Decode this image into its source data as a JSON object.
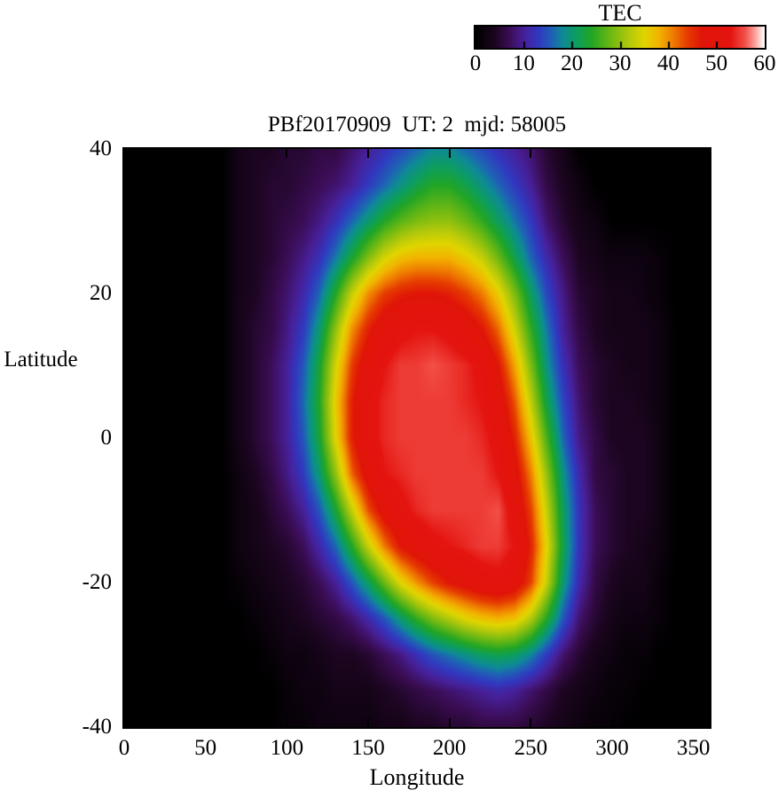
{
  "axes": {
    "xticks": [
      0,
      50,
      100,
      150,
      200,
      250,
      300,
      350
    ],
    "yticks": [
      -40,
      -20,
      0,
      20,
      40
    ],
    "xlim": [
      0,
      360
    ],
    "ylim": [
      -40,
      40
    ]
  },
  "colorbar": {
    "title": "TEC",
    "ticks": [
      0,
      10,
      20,
      30,
      40,
      50,
      60
    ],
    "min": 0,
    "max": 60
  },
  "chart_data": {
    "type": "heatmap",
    "title": "PBf20170909  UT: 2  mjd: 58005",
    "xlabel": "Longitude",
    "ylabel": "Latitude",
    "zlabel": "TEC",
    "xlim": [
      0,
      360
    ],
    "ylim": [
      -40,
      40
    ],
    "zlim": [
      0,
      60
    ],
    "grid": false,
    "lons": [
      0,
      10,
      20,
      30,
      40,
      50,
      60,
      70,
      80,
      90,
      100,
      110,
      120,
      130,
      140,
      150,
      160,
      170,
      180,
      190,
      200,
      210,
      220,
      230,
      240,
      250,
      260,
      270,
      280,
      290,
      300,
      310,
      320,
      330,
      340,
      350
    ],
    "lats": [
      40,
      35,
      30,
      25,
      20,
      15,
      10,
      5,
      0,
      -5,
      -10,
      -15,
      -20,
      -25,
      -30,
      -35,
      -40
    ],
    "values": [
      [
        0,
        0,
        0,
        0,
        0,
        0,
        0,
        3,
        4,
        4,
        5,
        5,
        6,
        6,
        8,
        10,
        12,
        14,
        16,
        18,
        18,
        16,
        14,
        12,
        10,
        8,
        5,
        3,
        0,
        0,
        0,
        0,
        0,
        0,
        0,
        0
      ],
      [
        0,
        0,
        0,
        0,
        0,
        0,
        0,
        3,
        4,
        5,
        5,
        6,
        7,
        8,
        10,
        13,
        16,
        19,
        22,
        24,
        24,
        22,
        19,
        16,
        13,
        10,
        6,
        4,
        2,
        0,
        0,
        0,
        0,
        0,
        0,
        0
      ],
      [
        0,
        0,
        0,
        0,
        0,
        0,
        0,
        3,
        4,
        5,
        6,
        7,
        9,
        12,
        16,
        20,
        24,
        27,
        29,
        30,
        30,
        28,
        25,
        21,
        17,
        13,
        8,
        5,
        3,
        2,
        0,
        0,
        0,
        0,
        0,
        0
      ],
      [
        0,
        0,
        0,
        0,
        0,
        0,
        0,
        3,
        4,
        5,
        7,
        9,
        12,
        17,
        23,
        29,
        34,
        37,
        38,
        38,
        38,
        36,
        33,
        28,
        22,
        16,
        11,
        7,
        4,
        3,
        2,
        2,
        2,
        1,
        0,
        0
      ],
      [
        0,
        0,
        0,
        0,
        0,
        0,
        0,
        3,
        4,
        6,
        8,
        11,
        16,
        24,
        33,
        40,
        44,
        46,
        47,
        47,
        46,
        44,
        41,
        36,
        29,
        21,
        14,
        9,
        5,
        4,
        3,
        3,
        2,
        1,
        0,
        0
      ],
      [
        0,
        0,
        0,
        0,
        0,
        0,
        0,
        3,
        5,
        6,
        9,
        13,
        20,
        30,
        40,
        46,
        50,
        52,
        53,
        53,
        52,
        50,
        47,
        42,
        34,
        25,
        17,
        10,
        6,
        4,
        3,
        3,
        3,
        2,
        0,
        0
      ],
      [
        0,
        0,
        0,
        0,
        0,
        0,
        0,
        3,
        5,
        7,
        10,
        15,
        23,
        34,
        44,
        50,
        53,
        55,
        55,
        56,
        55,
        54,
        52,
        47,
        39,
        29,
        19,
        12,
        7,
        5,
        4,
        3,
        3,
        2,
        0,
        0
      ],
      [
        0,
        0,
        0,
        0,
        0,
        0,
        0,
        3,
        5,
        7,
        10,
        16,
        24,
        36,
        46,
        52,
        54,
        55,
        55,
        55,
        55,
        54,
        53,
        50,
        43,
        33,
        22,
        14,
        8,
        5,
        4,
        4,
        3,
        2,
        0,
        0
      ],
      [
        0,
        0,
        0,
        0,
        0,
        0,
        0,
        3,
        5,
        7,
        10,
        15,
        23,
        35,
        46,
        52,
        54,
        55,
        55,
        55,
        55,
        55,
        54,
        52,
        46,
        37,
        26,
        16,
        9,
        6,
        4,
        4,
        4,
        2,
        0,
        0
      ],
      [
        0,
        0,
        0,
        0,
        0,
        0,
        0,
        2,
        4,
        6,
        9,
        13,
        20,
        30,
        42,
        49,
        53,
        54,
        55,
        55,
        55,
        55,
        55,
        53,
        49,
        41,
        30,
        19,
        11,
        6,
        5,
        4,
        4,
        2,
        0,
        0
      ],
      [
        0,
        0,
        0,
        0,
        0,
        0,
        0,
        2,
        3,
        5,
        7,
        10,
        15,
        23,
        33,
        43,
        49,
        52,
        54,
        55,
        55,
        55,
        55,
        56,
        51,
        44,
        33,
        21,
        12,
        7,
        5,
        4,
        4,
        2,
        0,
        0
      ],
      [
        0,
        0,
        0,
        0,
        0,
        0,
        0,
        2,
        3,
        4,
        5,
        7,
        11,
        16,
        24,
        33,
        41,
        47,
        50,
        52,
        53,
        54,
        55,
        55,
        53,
        46,
        35,
        22,
        12,
        7,
        5,
        4,
        3,
        2,
        0,
        0
      ],
      [
        0,
        0,
        0,
        0,
        0,
        0,
        0,
        1,
        2,
        3,
        4,
        5,
        7,
        10,
        15,
        21,
        28,
        35,
        40,
        44,
        47,
        49,
        51,
        52,
        50,
        44,
        33,
        20,
        11,
        6,
        4,
        3,
        3,
        1,
        0,
        0
      ],
      [
        0,
        0,
        0,
        0,
        0,
        0,
        0,
        0,
        1,
        2,
        3,
        4,
        5,
        6,
        8,
        11,
        15,
        20,
        25,
        29,
        32,
        35,
        37,
        38,
        37,
        32,
        24,
        15,
        8,
        5,
        3,
        2,
        2,
        1,
        0,
        0
      ],
      [
        0,
        0,
        0,
        0,
        0,
        0,
        0,
        0,
        0,
        1,
        2,
        2,
        3,
        4,
        4,
        5,
        7,
        9,
        12,
        15,
        17,
        19,
        21,
        22,
        21,
        18,
        13,
        8,
        5,
        3,
        2,
        1,
        1,
        0,
        0,
        0
      ],
      [
        0,
        0,
        0,
        0,
        0,
        0,
        0,
        0,
        0,
        0,
        1,
        2,
        2,
        3,
        3,
        3,
        4,
        5,
        6,
        7,
        8,
        9,
        10,
        11,
        10,
        8,
        6,
        4,
        3,
        2,
        1,
        1,
        0,
        0,
        0,
        0
      ],
      [
        0,
        0,
        0,
        0,
        0,
        0,
        0,
        0,
        0,
        0,
        1,
        1,
        2,
        2,
        2,
        2,
        3,
        3,
        4,
        4,
        5,
        5,
        6,
        6,
        6,
        5,
        4,
        3,
        2,
        1,
        1,
        0,
        0,
        0,
        0,
        0
      ]
    ],
    "colormap_stops": [
      [
        0,
        "#000000"
      ],
      [
        4,
        "#1c0520"
      ],
      [
        7,
        "#3b0d55"
      ],
      [
        10,
        "#472099"
      ],
      [
        13,
        "#3138c0"
      ],
      [
        16,
        "#1e64b4"
      ],
      [
        18,
        "#0e8a96"
      ],
      [
        21,
        "#0d9e5e"
      ],
      [
        24,
        "#21a526"
      ],
      [
        28,
        "#6cb813"
      ],
      [
        32,
        "#b4c90b"
      ],
      [
        35,
        "#e0d500"
      ],
      [
        38,
        "#f2b400"
      ],
      [
        41,
        "#ef7d00"
      ],
      [
        44,
        "#e63c00"
      ],
      [
        47,
        "#e01508"
      ],
      [
        53,
        "#e41410"
      ],
      [
        56,
        "#f25048"
      ],
      [
        58,
        "#fb9d96"
      ],
      [
        60,
        "#ffffff"
      ]
    ]
  }
}
